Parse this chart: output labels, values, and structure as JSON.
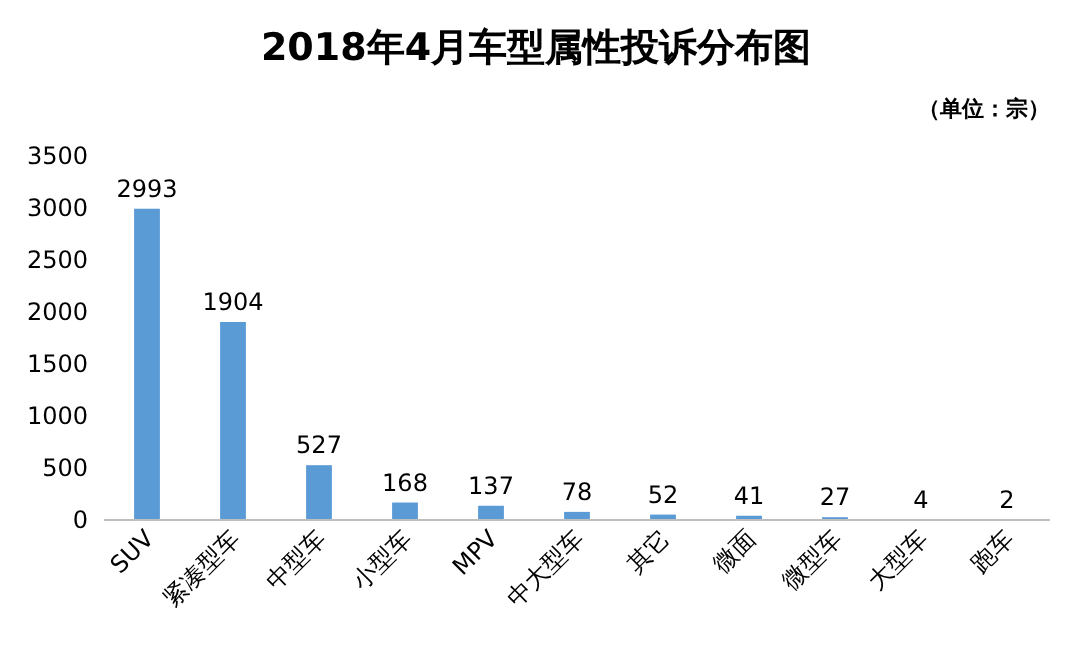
{
  "chart_data": {
    "type": "bar",
    "title": "2018年4月车型属性投诉分布图",
    "annotations": [
      "（单位：宗）"
    ],
    "categories": [
      "SUV",
      "紧凑型车",
      "中型车",
      "小型车",
      "MPV",
      "中大型车",
      "其它",
      "微面",
      "微型车",
      "大型车",
      "跑车"
    ],
    "values": [
      2993,
      1904,
      527,
      168,
      137,
      78,
      52,
      41,
      27,
      4,
      2
    ],
    "color": "#5b9bd5",
    "ylim": [
      0,
      3500
    ],
    "yticks": [
      0,
      500,
      1000,
      1500,
      2000,
      2500,
      3000,
      3500
    ],
    "data_labels": true,
    "grid": false
  }
}
